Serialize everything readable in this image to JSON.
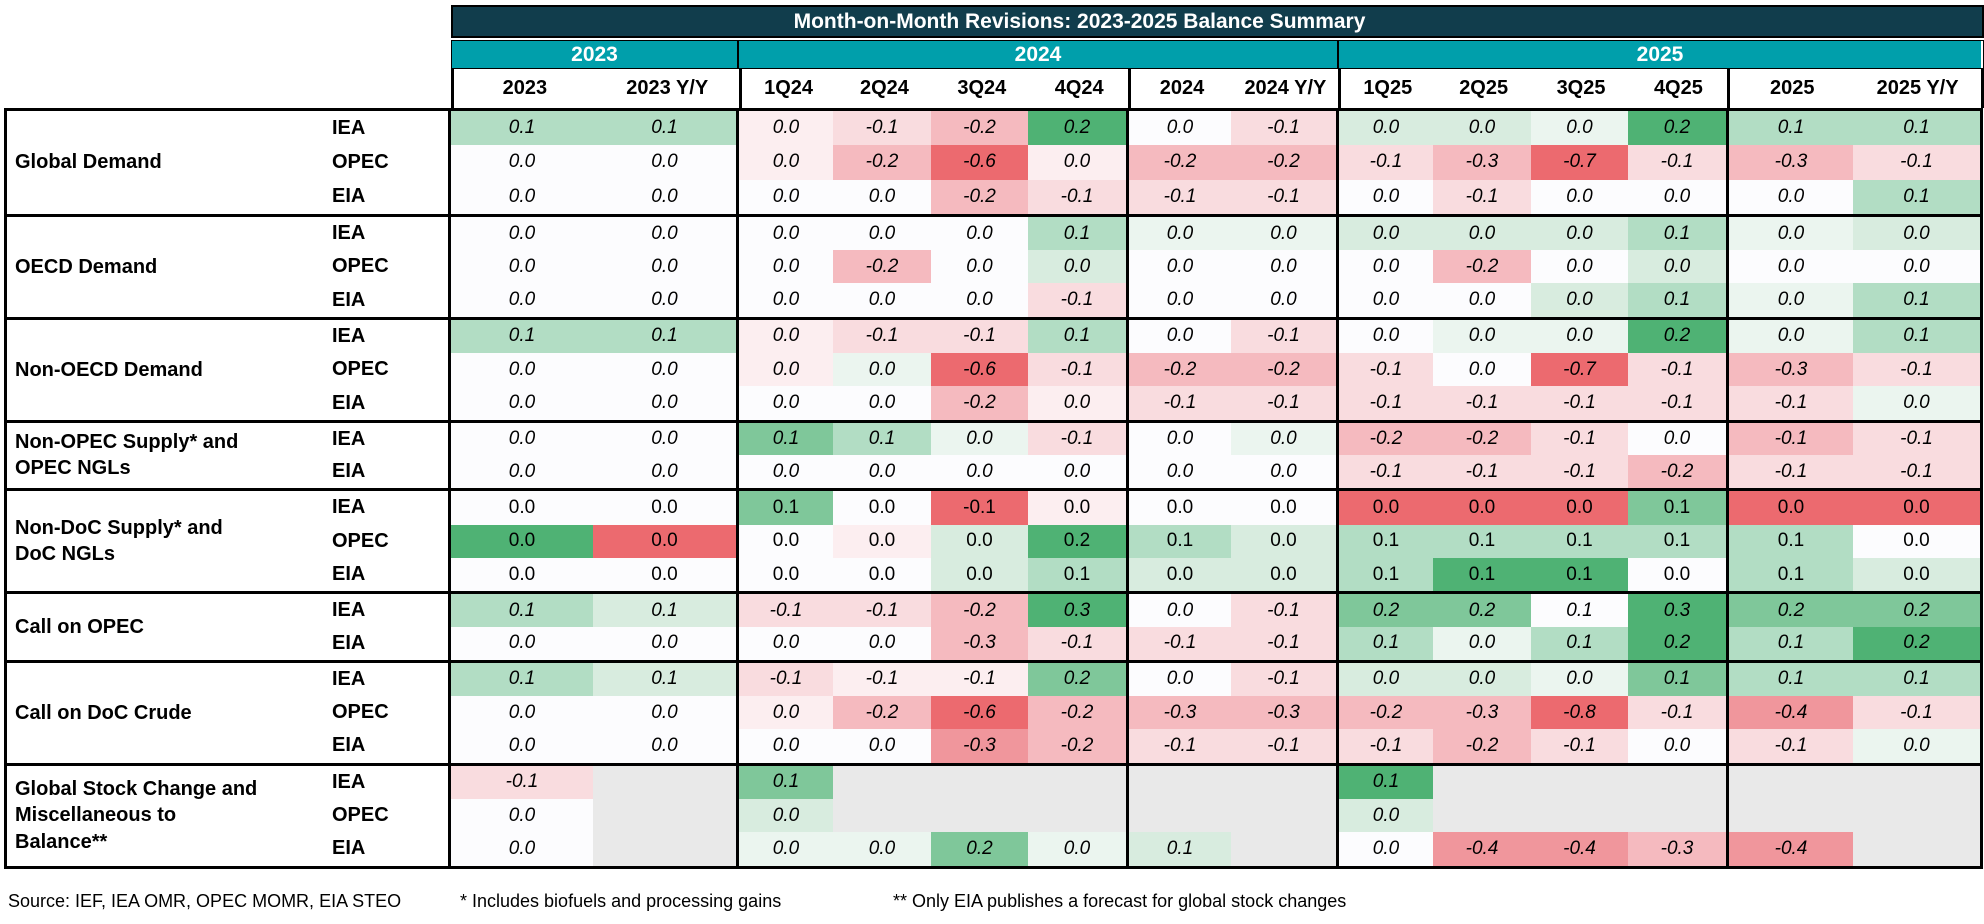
{
  "palette": {
    "g4": "#4FB274",
    "g3": "#7FC79A",
    "g2": "#B2DDC4",
    "g1": "#D8ECDF",
    "g0": "#EBF5EF",
    "w": "#FCFCFE",
    "r0": "#FCEEF0",
    "r1": "#F9DCDF",
    "r2": "#F5BABF",
    "r3": "#F0969C",
    "r4": "#EC6A6F",
    "gy": "#E9E9E9"
  },
  "theme": {
    "title_bg": "#113D4C",
    "band_bg": "#009FAB",
    "header_text": "#FFFFFF",
    "border": "#000000"
  },
  "chart_data": {
    "type": "table",
    "title": "Month-on-Month Revisions: 2023-2025 Balance Summary",
    "year_bands": [
      {
        "label": "2023",
        "cols": 2
      },
      {
        "label": "2024",
        "cols": 6
      },
      {
        "label": "2025",
        "cols": 6
      }
    ],
    "columns": [
      "2023",
      "2023 Y/Y",
      "1Q24",
      "2Q24",
      "3Q24",
      "4Q24",
      "2024",
      "2024 Y/Y",
      "1Q25",
      "2Q25",
      "3Q25",
      "4Q25",
      "2025",
      "2025 Y/Y"
    ],
    "sections": [
      {
        "label": "Global Demand",
        "rows": [
          {
            "source": "IEA",
            "values": [
              "0.1",
              "0.1",
              "0.0",
              "-0.1",
              "-0.2",
              "0.2",
              "0.0",
              "-0.1",
              "0.0",
              "0.0",
              "0.0",
              "0.2",
              "0.1",
              "0.1"
            ],
            "colors": [
              "g2",
              "g2",
              "r0",
              "r1",
              "r2",
              "g4",
              "w",
              "r1",
              "g1",
              "g1",
              "g0",
              "g4",
              "g2",
              "g2"
            ]
          },
          {
            "source": "OPEC",
            "values": [
              "0.0",
              "0.0",
              "0.0",
              "-0.2",
              "-0.6",
              "0.0",
              "-0.2",
              "-0.2",
              "-0.1",
              "-0.3",
              "-0.7",
              "-0.1",
              "-0.3",
              "-0.1"
            ],
            "colors": [
              "w",
              "w",
              "r0",
              "r2",
              "r4",
              "r0",
              "r2",
              "r2",
              "r1",
              "r2",
              "r4",
              "r1",
              "r2",
              "r1"
            ]
          },
          {
            "source": "EIA",
            "values": [
              "0.0",
              "0.0",
              "0.0",
              "0.0",
              "-0.2",
              "-0.1",
              "-0.1",
              "-0.1",
              "0.0",
              "-0.1",
              "0.0",
              "0.0",
              "0.0",
              "0.1"
            ],
            "colors": [
              "w",
              "w",
              "w",
              "w",
              "r2",
              "r1",
              "r1",
              "r1",
              "w",
              "r1",
              "w",
              "w",
              "w",
              "g2"
            ]
          }
        ]
      },
      {
        "label": "OECD Demand",
        "rows": [
          {
            "source": "IEA",
            "values": [
              "0.0",
              "0.0",
              "0.0",
              "0.0",
              "0.0",
              "0.1",
              "0.0",
              "0.0",
              "0.0",
              "0.0",
              "0.0",
              "0.1",
              "0.0",
              "0.0"
            ],
            "colors": [
              "w",
              "w",
              "w",
              "w",
              "w",
              "g2",
              "g0",
              "g0",
              "g1",
              "g1",
              "g1",
              "g2",
              "g0",
              "g1"
            ]
          },
          {
            "source": "OPEC",
            "values": [
              "0.0",
              "0.0",
              "0.0",
              "-0.2",
              "0.0",
              "0.0",
              "0.0",
              "0.0",
              "0.0",
              "-0.2",
              "0.0",
              "0.0",
              "0.0",
              "0.0"
            ],
            "colors": [
              "w",
              "w",
              "w",
              "r2",
              "w",
              "g1",
              "w",
              "w",
              "w",
              "r2",
              "w",
              "g1",
              "w",
              "w"
            ]
          },
          {
            "source": "EIA",
            "values": [
              "0.0",
              "0.0",
              "0.0",
              "0.0",
              "0.0",
              "-0.1",
              "0.0",
              "0.0",
              "0.0",
              "0.0",
              "0.0",
              "0.1",
              "0.0",
              "0.1"
            ],
            "colors": [
              "w",
              "w",
              "w",
              "w",
              "w",
              "r1",
              "w",
              "w",
              "w",
              "w",
              "g1",
              "g2",
              "g0",
              "g2"
            ]
          }
        ]
      },
      {
        "label": "Non-OECD Demand",
        "rows": [
          {
            "source": "IEA",
            "values": [
              "0.1",
              "0.1",
              "0.0",
              "-0.1",
              "-0.1",
              "0.1",
              "0.0",
              "-0.1",
              "0.0",
              "0.0",
              "0.0",
              "0.2",
              "0.0",
              "0.1"
            ],
            "colors": [
              "g2",
              "g2",
              "r0",
              "r1",
              "r1",
              "g2",
              "w",
              "r1",
              "w",
              "g0",
              "g0",
              "g4",
              "g0",
              "g2"
            ]
          },
          {
            "source": "OPEC",
            "values": [
              "0.0",
              "0.0",
              "0.0",
              "0.0",
              "-0.6",
              "-0.1",
              "-0.2",
              "-0.2",
              "-0.1",
              "0.0",
              "-0.7",
              "-0.1",
              "-0.3",
              "-0.1"
            ],
            "colors": [
              "w",
              "w",
              "r0",
              "g0",
              "r4",
              "r1",
              "r2",
              "r2",
              "r1",
              "w",
              "r4",
              "r1",
              "r2",
              "r1"
            ]
          },
          {
            "source": "EIA",
            "values": [
              "0.0",
              "0.0",
              "0.0",
              "0.0",
              "-0.2",
              "0.0",
              "-0.1",
              "-0.1",
              "-0.1",
              "-0.1",
              "-0.1",
              "-0.1",
              "-0.1",
              "0.0"
            ],
            "colors": [
              "w",
              "w",
              "w",
              "w",
              "r2",
              "r0",
              "r1",
              "r1",
              "r1",
              "r1",
              "r1",
              "r1",
              "r1",
              "g0"
            ]
          }
        ]
      },
      {
        "label": "Non-OPEC Supply* and OPEC NGLs",
        "rows": [
          {
            "source": "IEA",
            "values": [
              "0.0",
              "0.0",
              "0.1",
              "0.1",
              "0.0",
              "-0.1",
              "0.0",
              "0.0",
              "-0.2",
              "-0.2",
              "-0.1",
              "0.0",
              "-0.1",
              "-0.1"
            ],
            "colors": [
              "w",
              "w",
              "g3",
              "g2",
              "g0",
              "r1",
              "w",
              "g0",
              "r2",
              "r2",
              "r1",
              "w",
              "r2",
              "r1"
            ]
          },
          {
            "source": "EIA",
            "values": [
              "0.0",
              "0.0",
              "0.0",
              "0.0",
              "0.0",
              "0.0",
              "0.0",
              "0.0",
              "-0.1",
              "-0.1",
              "-0.1",
              "-0.2",
              "-0.1",
              "-0.1"
            ],
            "colors": [
              "w",
              "w",
              "w",
              "w",
              "w",
              "w",
              "w",
              "w",
              "r1",
              "r1",
              "r1",
              "r2",
              "r1",
              "r1"
            ]
          }
        ]
      },
      {
        "label": "Non-DoC Supply* and DoC NGLs",
        "upright": true,
        "rows": [
          {
            "source": "IEA",
            "values": [
              "0.0",
              "0.0",
              "0.1",
              "0.0",
              "-0.1",
              "0.0",
              "0.0",
              "0.0",
              "0.0",
              "0.0",
              "0.0",
              "0.1",
              "0.0",
              "0.0"
            ],
            "colors": [
              "w",
              "w",
              "g3",
              "w",
              "r4",
              "r0",
              "w",
              "w",
              "r4",
              "r4",
              "r4",
              "g3",
              "r4",
              "r4"
            ]
          },
          {
            "source": "OPEC",
            "values": [
              "0.0",
              "0.0",
              "0.0",
              "0.0",
              "0.0",
              "0.2",
              "0.1",
              "0.0",
              "0.1",
              "0.1",
              "0.1",
              "0.1",
              "0.1",
              "0.0"
            ],
            "colors": [
              "g4",
              "r4",
              "w",
              "r0",
              "g1",
              "g4",
              "g2",
              "g1",
              "g2",
              "g2",
              "g2",
              "g2",
              "g2",
              "w"
            ]
          },
          {
            "source": "EIA",
            "values": [
              "0.0",
              "0.0",
              "0.0",
              "0.0",
              "0.0",
              "0.1",
              "0.0",
              "0.0",
              "0.1",
              "0.1",
              "0.1",
              "0.0",
              "0.1",
              "0.0"
            ],
            "colors": [
              "w",
              "w",
              "w",
              "w",
              "g1",
              "g2",
              "g1",
              "g1",
              "g2",
              "g4",
              "g4",
              "w",
              "g2",
              "g1"
            ]
          }
        ]
      },
      {
        "label": "Call on OPEC",
        "rows": [
          {
            "source": "IEA",
            "values": [
              "0.1",
              "0.1",
              "-0.1",
              "-0.1",
              "-0.2",
              "0.3",
              "0.0",
              "-0.1",
              "0.2",
              "0.2",
              "0.1",
              "0.3",
              "0.2",
              "0.2"
            ],
            "colors": [
              "g2",
              "g1",
              "r1",
              "r1",
              "r2",
              "g4",
              "w",
              "r1",
              "g3",
              "g3",
              "w",
              "g4",
              "g3",
              "g3"
            ]
          },
          {
            "source": "EIA",
            "values": [
              "0.0",
              "0.0",
              "0.0",
              "0.0",
              "-0.3",
              "-0.1",
              "-0.1",
              "-0.1",
              "0.1",
              "0.0",
              "0.1",
              "0.2",
              "0.1",
              "0.2"
            ],
            "colors": [
              "w",
              "w",
              "w",
              "w",
              "r2",
              "r1",
              "r1",
              "r1",
              "g2",
              "g0",
              "g2",
              "g4",
              "g2",
              "g4"
            ]
          }
        ]
      },
      {
        "label": "Call on DoC Crude",
        "rows": [
          {
            "source": "IEA",
            "values": [
              "0.1",
              "0.1",
              "-0.1",
              "-0.1",
              "-0.1",
              "0.2",
              "0.0",
              "-0.1",
              "0.0",
              "0.0",
              "0.0",
              "0.1",
              "0.1",
              "0.1"
            ],
            "colors": [
              "g2",
              "g1",
              "r1",
              "r0",
              "r0",
              "g3",
              "w",
              "r1",
              "g1",
              "g1",
              "g0",
              "g3",
              "g2",
              "g2"
            ]
          },
          {
            "source": "OPEC",
            "values": [
              "0.0",
              "0.0",
              "0.0",
              "-0.2",
              "-0.6",
              "-0.2",
              "-0.3",
              "-0.3",
              "-0.2",
              "-0.3",
              "-0.8",
              "-0.1",
              "-0.4",
              "-0.1"
            ],
            "colors": [
              "w",
              "w",
              "r0",
              "r2",
              "r4",
              "r2",
              "r2",
              "r2",
              "r2",
              "r2",
              "r4",
              "r1",
              "r3",
              "r1"
            ]
          },
          {
            "source": "EIA",
            "values": [
              "0.0",
              "0.0",
              "0.0",
              "0.0",
              "-0.3",
              "-0.2",
              "-0.1",
              "-0.1",
              "-0.1",
              "-0.2",
              "-0.1",
              "0.0",
              "-0.1",
              "0.0"
            ],
            "colors": [
              "w",
              "w",
              "w",
              "w",
              "r3",
              "r2",
              "r1",
              "r1",
              "r1",
              "r2",
              "r1",
              "w",
              "r1",
              "g0"
            ]
          }
        ]
      },
      {
        "label": "Global Stock Change and Miscellaneous to Balance**",
        "rows": [
          {
            "source": "IEA",
            "values": [
              "-0.1",
              "",
              "0.1",
              "",
              "",
              "",
              "",
              "",
              "0.1",
              "",
              "",
              "",
              "",
              ""
            ],
            "colors": [
              "r1",
              "gy",
              "g3",
              "gy",
              "gy",
              "gy",
              "gy",
              "gy",
              "g4",
              "gy",
              "gy",
              "gy",
              "gy",
              "gy"
            ]
          },
          {
            "source": "OPEC",
            "values": [
              "0.0",
              "",
              "0.0",
              "",
              "",
              "",
              "",
              "",
              "0.0",
              "",
              "",
              "",
              "",
              ""
            ],
            "colors": [
              "w",
              "gy",
              "g1",
              "gy",
              "gy",
              "gy",
              "gy",
              "gy",
              "g1",
              "gy",
              "gy",
              "gy",
              "gy",
              "gy"
            ]
          },
          {
            "source": "EIA",
            "values": [
              "0.0",
              "",
              "0.0",
              "0.0",
              "0.2",
              "0.0",
              "0.1",
              "",
              "0.0",
              "-0.4",
              "-0.4",
              "-0.3",
              "-0.4",
              ""
            ],
            "colors": [
              "w",
              "gy",
              "g0",
              "g0",
              "g3",
              "g0",
              "g1",
              "gy",
              "w",
              "r3",
              "r3",
              "r2",
              "r3",
              "gy"
            ]
          }
        ]
      }
    ]
  },
  "footer": {
    "source": "Source: IEF, IEA OMR, OPEC MOMR, EIA STEO",
    "note1": "* Includes biofuels and processing gains",
    "note2": "** Only EIA publishes a forecast for global stock changes"
  }
}
